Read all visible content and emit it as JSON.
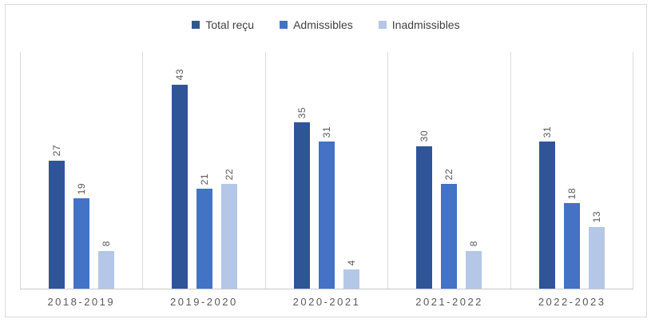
{
  "palette": {
    "frame_border": "#D9D9D9",
    "gridline": "#DADADA",
    "axis_line": "#C9C9C9",
    "legend_text": "#404040",
    "value_text": "#595959",
    "category_text": "#595959",
    "background": "#FFFFFF"
  },
  "chart_data": {
    "type": "bar",
    "title": "",
    "xlabel": "",
    "ylabel": "",
    "categories": [
      "2018-2019",
      "2019-2020",
      "2020-2021",
      "2021-2022",
      "2022-2023"
    ],
    "series": [
      {
        "name": "Total reçu",
        "color": "#2F5597",
        "values": [
          27,
          43,
          35,
          30,
          31
        ]
      },
      {
        "name": "Admissibles",
        "color": "#4472C4",
        "values": [
          19,
          21,
          31,
          22,
          18
        ]
      },
      {
        "name": "Inadmissibles",
        "color": "#B4C7E7",
        "values": [
          8,
          22,
          4,
          8,
          13
        ]
      }
    ],
    "ylim": [
      0,
      50
    ],
    "y_axis_visible": false,
    "horizontal_gridlines": false,
    "vertical_category_separators": true,
    "legend_position": "top",
    "data_labels": "outside-end-rotated-270"
  }
}
